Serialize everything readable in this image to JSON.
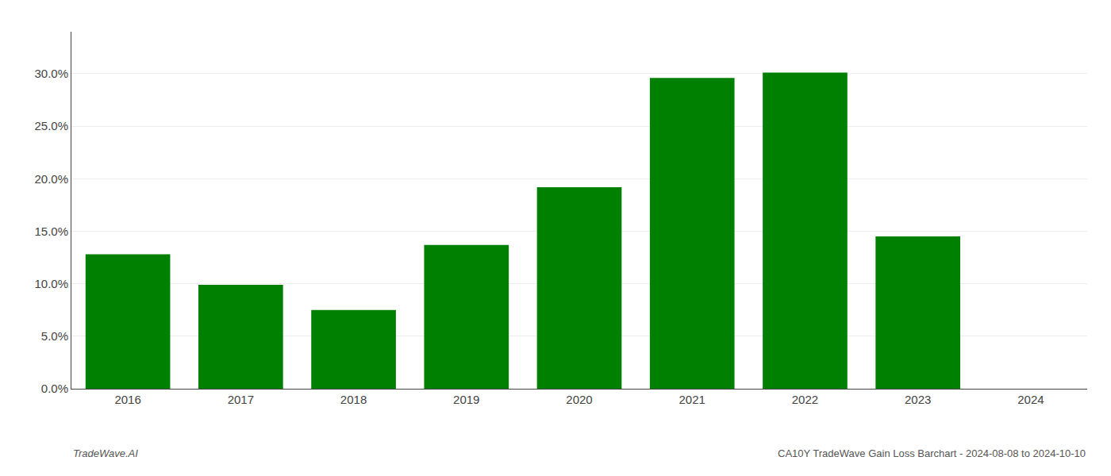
{
  "chart_data": {
    "type": "bar",
    "categories": [
      "2016",
      "2017",
      "2018",
      "2019",
      "2020",
      "2021",
      "2022",
      "2023",
      "2024"
    ],
    "values": [
      0.128,
      0.099,
      0.075,
      0.137,
      0.192,
      0.296,
      0.301,
      0.145,
      0.0
    ],
    "color": "#008000",
    "ylim": [
      0.0,
      0.34
    ],
    "yticks": [
      {
        "value": 0.0,
        "label": "0.0%"
      },
      {
        "value": 0.05,
        "label": "5.0%"
      },
      {
        "value": 0.1,
        "label": "10.0%"
      },
      {
        "value": 0.15,
        "label": "15.0%"
      },
      {
        "value": 0.2,
        "label": "20.0%"
      },
      {
        "value": 0.25,
        "label": "25.0%"
      },
      {
        "value": 0.3,
        "label": "30.0%"
      }
    ],
    "grid": true,
    "annotations": [
      "TradeWave.AI",
      "CA10Y TradeWave Gain Loss Barchart - 2024-08-08 to 2024-10-10"
    ]
  }
}
